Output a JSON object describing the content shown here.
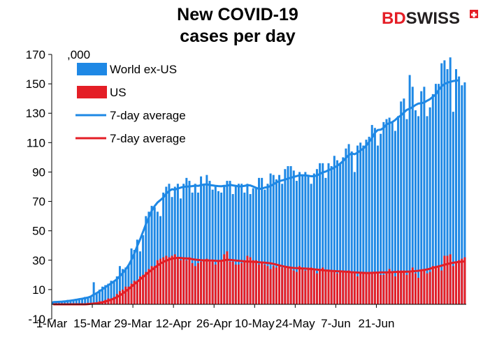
{
  "brand": {
    "name_part1": "BD",
    "name_part2": "SWISS",
    "colors": {
      "red": "#e41e26",
      "dark": "#231f20"
    }
  },
  "chart_data": {
    "type": "bar",
    "title": "New COVID-19 cases per day",
    "title_lines": [
      "New COVID-19",
      "cases per day"
    ],
    "unit_label": ",000",
    "ylim": [
      -10,
      170
    ],
    "yticks": [
      -10,
      10,
      30,
      50,
      70,
      90,
      110,
      130,
      150,
      170
    ],
    "xtick_labels": [
      "1-Mar",
      "15-Mar",
      "29-Mar",
      "12-Apr",
      "26-Apr",
      "10-May",
      "24-May",
      "7-Jun",
      "21-Jun"
    ],
    "x_start": "1-Mar",
    "colors": {
      "world_bar": "#1e88e5",
      "us_bar": "#e41e26",
      "world_line": "#1e88e5",
      "us_line": "#e41e26"
    },
    "legend": [
      {
        "label": "World ex-US",
        "kind": "bar",
        "color": "#1e88e5"
      },
      {
        "label": "US",
        "kind": "bar",
        "color": "#e41e26"
      },
      {
        "label": "7-day average",
        "kind": "line",
        "color": "#1e88e5"
      },
      {
        "label": "7-day average",
        "kind": "line",
        "color": "#e41e26"
      }
    ],
    "legend_position": "top-left",
    "series": [
      {
        "name": "World ex-US",
        "kind": "bar",
        "values": [
          2,
          2,
          2,
          2,
          2,
          3,
          3,
          3,
          3,
          3,
          4,
          5,
          4,
          5,
          15,
          8,
          10,
          12,
          13,
          14,
          16,
          16,
          19,
          26,
          24,
          25,
          27,
          38,
          37,
          44,
          36,
          47,
          60,
          63,
          67,
          66,
          63,
          60,
          76,
          80,
          82,
          73,
          80,
          82,
          72,
          82,
          86,
          84,
          76,
          82,
          76,
          87,
          82,
          88,
          84,
          78,
          80,
          77,
          76,
          80,
          84,
          84,
          75,
          80,
          82,
          82,
          76,
          82,
          75,
          79,
          79,
          86,
          86,
          78,
          82,
          89,
          88,
          85,
          88,
          82,
          92,
          94,
          94,
          91,
          84,
          90,
          88,
          90,
          88,
          82,
          89,
          92,
          96,
          96,
          86,
          96,
          94,
          101,
          98,
          96,
          100,
          106,
          109,
          104,
          90,
          108,
          110,
          108,
          112,
          114,
          122,
          120,
          108,
          116,
          124,
          126,
          127,
          124,
          118,
          128,
          138,
          140,
          126,
          156,
          148,
          132,
          128,
          145,
          148,
          128,
          134,
          143,
          150,
          150,
          164,
          166,
          160,
          168,
          131,
          160,
          155,
          149,
          151
        ]
      },
      {
        "name": "US",
        "kind": "bar",
        "values": [
          0,
          0,
          0,
          0,
          0,
          0,
          0,
          0,
          0,
          0,
          0,
          0,
          1,
          1,
          1,
          1,
          2,
          2,
          3,
          4,
          4,
          5,
          7,
          9,
          10,
          12,
          12,
          14,
          16,
          16,
          19,
          20,
          22,
          24,
          26,
          26,
          30,
          31,
          32,
          33,
          32,
          33,
          34,
          32,
          30,
          31,
          30,
          32,
          28,
          26,
          28,
          29,
          30,
          31,
          29,
          29,
          27,
          30,
          30,
          34,
          36,
          29,
          29,
          27,
          27,
          28,
          30,
          33,
          32,
          30,
          30,
          27,
          28,
          27,
          26,
          24,
          26,
          25,
          27,
          25,
          25,
          25,
          24,
          23,
          22,
          26,
          25,
          23,
          25,
          25,
          23,
          21,
          23,
          25,
          23,
          23,
          22,
          22,
          21,
          23,
          22,
          22,
          23,
          22,
          21,
          19,
          22,
          22,
          21,
          21,
          21,
          21,
          21,
          20,
          20,
          21,
          24,
          22,
          19,
          23,
          23,
          23,
          20,
          22,
          25,
          21,
          18,
          23,
          23,
          21,
          22,
          26,
          26,
          25,
          23,
          33,
          33,
          34,
          26,
          29,
          30,
          31,
          32
        ]
      },
      {
        "name": "7-day average",
        "kind": "line",
        "values": [
          1.5,
          1.6,
          1.7,
          1.8,
          2.0,
          2.2,
          2.5,
          2.8,
          3.1,
          3.5,
          3.8,
          4.2,
          4.6,
          5.3,
          6.6,
          7.6,
          8.9,
          10.2,
          11.6,
          13.0,
          14.2,
          15.6,
          17.1,
          19.1,
          21.3,
          23.7,
          26.5,
          30.2,
          34.5,
          39.6,
          44.2,
          49.3,
          54.5,
          59.1,
          63.6,
          66.8,
          69.3,
          70.9,
          72.6,
          75.3,
          77.1,
          78.3,
          78.0,
          78.8,
          79.4,
          79.9,
          80.1,
          80.2,
          80.4,
          80.7,
          80.6,
          81.0,
          81.5,
          81.6,
          81.1,
          80.9,
          80.6,
          80.4,
          80.3,
          80.6,
          80.6,
          81.3,
          80.9,
          80.6,
          80.2,
          80.3,
          80.6,
          81.0,
          80.9,
          80.1,
          79.3,
          78.5,
          78.7,
          79.4,
          79.7,
          80.6,
          81.6,
          82.9,
          83.8,
          84.3,
          84.8,
          85.6,
          86.1,
          86.7,
          87.2,
          87.8,
          87.8,
          87.7,
          87.5,
          87.1,
          87.1,
          87.7,
          88.7,
          89.8,
          90.3,
          91.3,
          92.0,
          93.0,
          94.2,
          95.7,
          97.4,
          99.6,
          101.6,
          102.6,
          102.1,
          103.2,
          104.6,
          106.0,
          107.9,
          110.5,
          113.2,
          116.7,
          118.6,
          118.8,
          120.0,
          122.4,
          123.3,
          124.0,
          125.4,
          127.3,
          128.5,
          130.5,
          132.3,
          133.1,
          134.2,
          135.6,
          136.6,
          136.8,
          137.3,
          138.5,
          139.6,
          141.2,
          142.8,
          145.9,
          148.3,
          149.9,
          150.8,
          151.4,
          151.9,
          152.2,
          152.4
        ]
      },
      {
        "name": "7-day average",
        "kind": "line",
        "values": [
          0,
          0,
          0,
          0,
          0,
          0,
          0,
          0,
          0,
          0,
          0,
          0,
          0.1,
          0.3,
          0.5,
          0.7,
          1.0,
          1.4,
          1.9,
          2.5,
          3.1,
          3.9,
          4.9,
          6.0,
          7.4,
          8.8,
          10.3,
          12.0,
          13.7,
          15.3,
          17.0,
          18.6,
          20.2,
          21.9,
          23.4,
          24.9,
          26.4,
          27.7,
          28.8,
          29.7,
          30.4,
          31.1,
          31.4,
          31.6,
          31.5,
          31.3,
          31.2,
          31.1,
          30.7,
          30.4,
          30.2,
          30.0,
          29.9,
          29.9,
          29.8,
          29.8,
          29.6,
          29.5,
          29.6,
          29.9,
          30.3,
          30.2,
          30.0,
          29.8,
          29.6,
          29.4,
          29.2,
          29.1,
          29.0,
          28.9,
          28.8,
          28.6,
          28.5,
          28.3,
          28.1,
          27.9,
          27.5,
          27.0,
          26.5,
          26.0,
          25.6,
          25.2,
          24.9,
          24.7,
          24.6,
          24.5,
          24.4,
          24.3,
          24.1,
          24.0,
          23.8,
          23.6,
          23.4,
          23.2,
          23.0,
          22.9,
          22.7,
          22.6,
          22.5,
          22.4,
          22.3,
          22.2,
          22.0,
          21.8,
          21.7,
          21.6,
          21.5,
          21.4,
          21.3,
          21.3,
          21.4,
          21.5,
          21.6,
          21.7,
          21.7,
          21.7,
          21.8,
          21.9,
          22.0,
          22.0,
          22.0,
          22.1,
          22.2,
          22.3,
          22.5,
          22.6,
          22.8,
          23.1,
          23.4,
          23.7,
          24.2,
          24.8,
          25.3,
          25.8,
          26.3,
          26.9,
          27.4,
          27.9,
          28.3,
          28.6,
          28.8,
          29.0,
          29.2
        ]
      }
    ]
  }
}
